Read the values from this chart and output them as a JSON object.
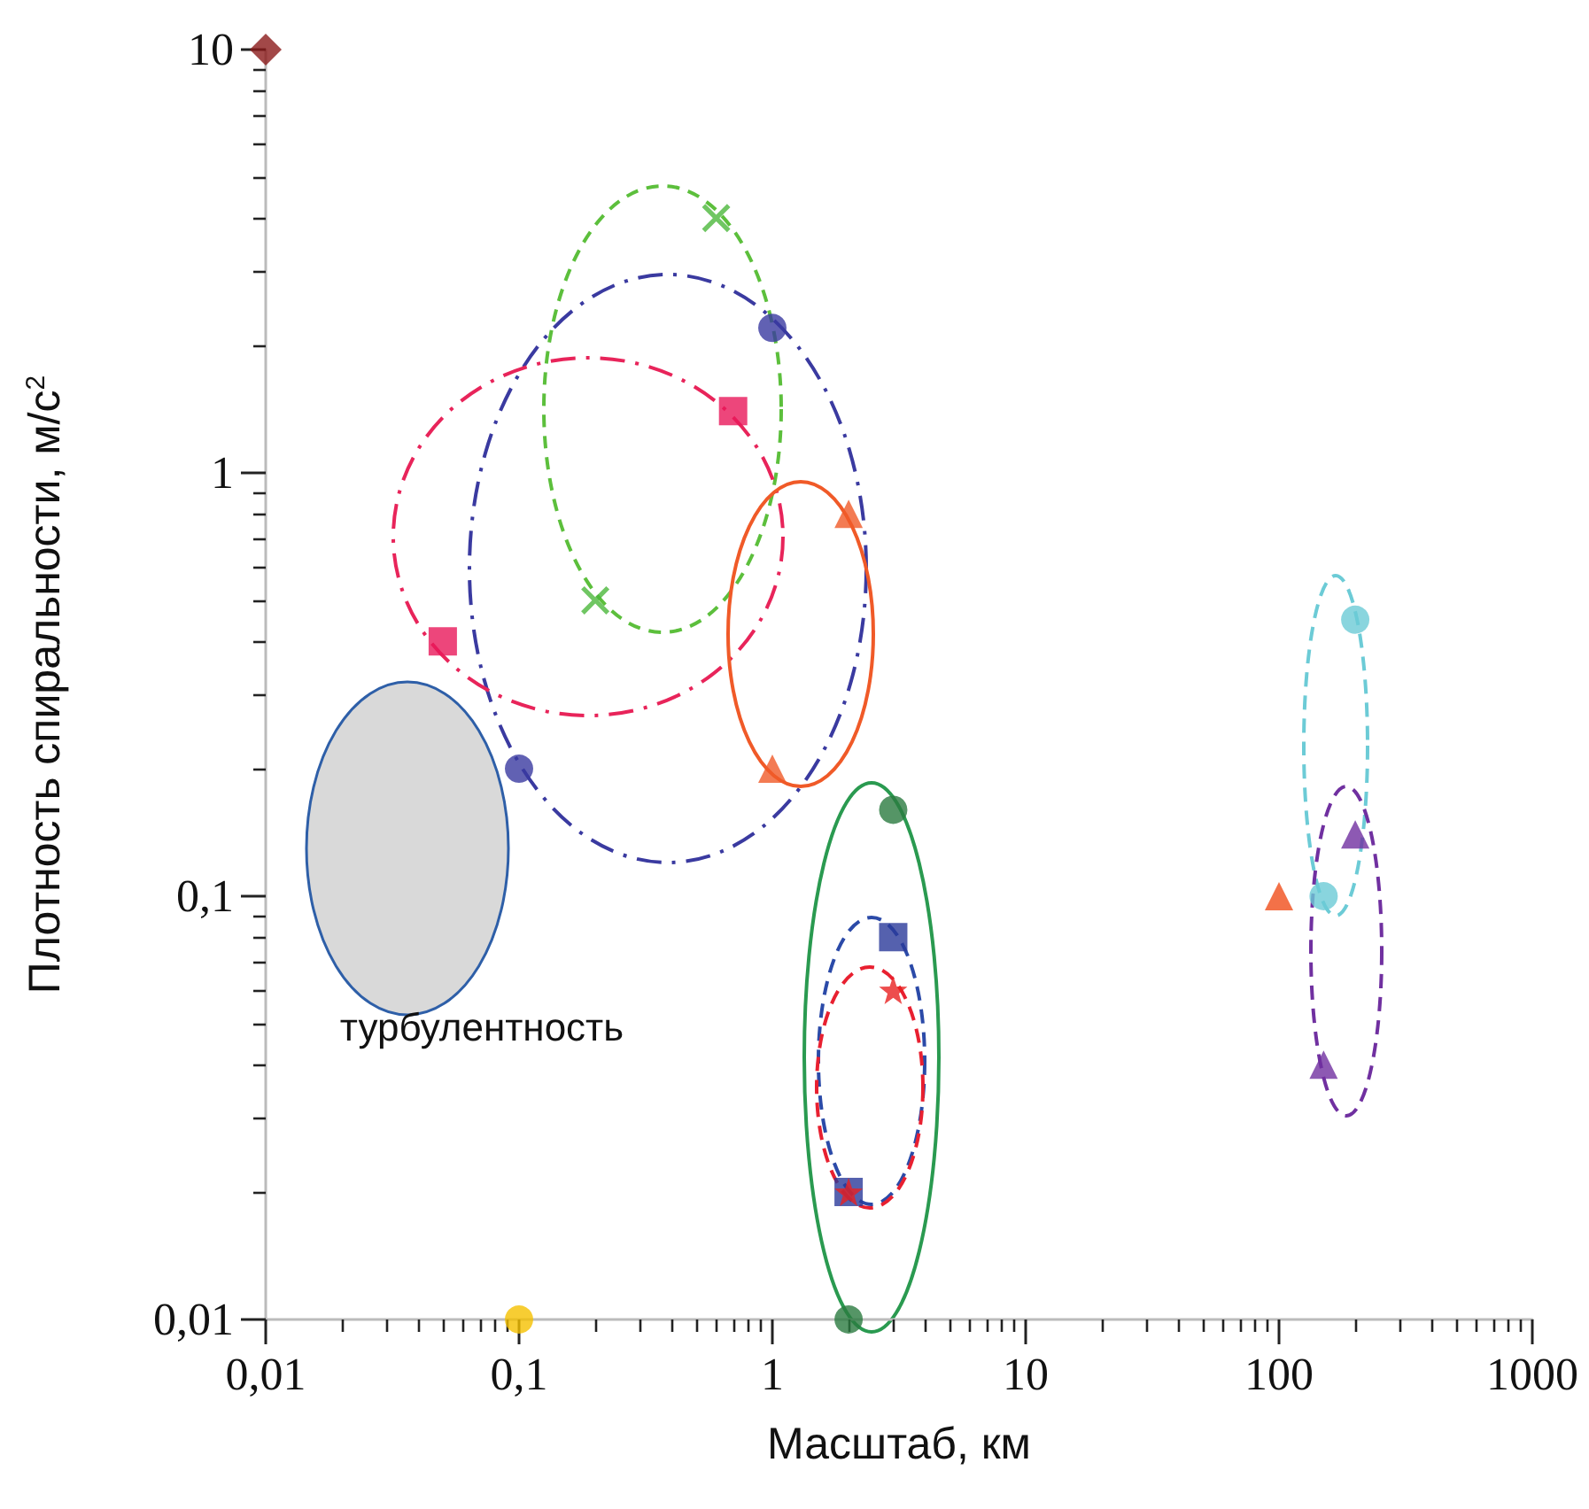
{
  "chart_data": {
    "type": "scatter",
    "xlabel": "Масштаб, км",
    "ylabel": "Плотность спиральности, м/с$^{2}$",
    "log": "xy",
    "xlim": [
      0.01,
      1000
    ],
    "ylim": [
      0.01,
      10
    ],
    "xticks": [
      {
        "value": 0.01,
        "label": "0,01"
      },
      {
        "value": 0.1,
        "label": "0,1"
      },
      1,
      10,
      100,
      1000
    ],
    "yticks": [
      {
        "value": 0.01,
        "label": "0,01"
      },
      {
        "value": 0.1,
        "label": "0,1"
      },
      1,
      10
    ],
    "annotations": [
      "турбулентность"
    ],
    "series": [
      {
        "marker": "diamond",
        "color": "#8b1a1a",
        "x": [
          0.01
        ],
        "values": [
          10
        ]
      },
      {
        "marker": "circle",
        "color": "#f5c000",
        "x": [
          0.1
        ],
        "values": [
          0.01
        ]
      },
      {
        "marker": "cross",
        "color": "#4cb83c",
        "x": [
          0.6,
          0.2
        ],
        "values": [
          4,
          0.5
        ]
      },
      {
        "marker": "circle",
        "color": "#3a3aa0",
        "x": [
          1,
          0.1
        ],
        "values": [
          2.2,
          0.2
        ]
      },
      {
        "marker": "square",
        "color": "#e8185a",
        "x": [
          0.7,
          0.05
        ],
        "values": [
          1.4,
          0.4
        ]
      },
      {
        "marker": "triangle",
        "color": "#f05a28",
        "x": [
          2,
          1
        ],
        "values": [
          0.8,
          0.2
        ]
      },
      {
        "marker": "circle",
        "color": "#2a7a40",
        "x": [
          3,
          2
        ],
        "values": [
          0.16,
          0.01
        ]
      },
      {
        "marker": "square",
        "color": "#2b3a9a",
        "x": [
          3,
          2
        ],
        "values": [
          0.08,
          0.02
        ]
      },
      {
        "marker": "star",
        "color": "#e82020",
        "x": [
          3,
          2
        ],
        "values": [
          0.06,
          0.02
        ]
      },
      {
        "marker": "triangle",
        "color": "#f04e1a",
        "x": [
          100
        ],
        "values": [
          0.1
        ]
      },
      {
        "marker": "circle",
        "color": "#6ccbd6",
        "x": [
          200,
          150
        ],
        "values": [
          0.45,
          0.1
        ]
      },
      {
        "marker": "triangle",
        "color": "#7030a0",
        "x": [
          200,
          150
        ],
        "values": [
          0.14,
          0.04
        ]
      }
    ]
  }
}
